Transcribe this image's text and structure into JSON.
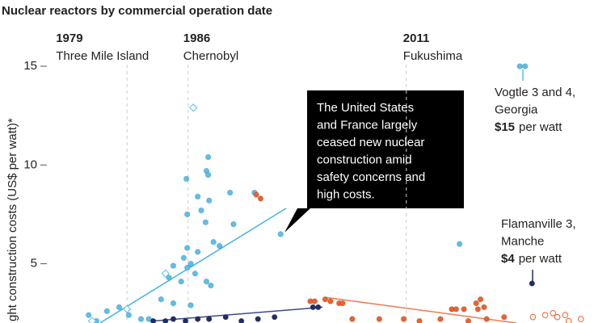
{
  "chart_data": {
    "type": "scatter",
    "title": "Nuclear reactors by commercial operation date",
    "y_label": "ght construction costs (US$ per watt)*",
    "xlim": [
      1970,
      2032.5
    ],
    "ylim": [
      2,
      15.9
    ],
    "yticks": [
      5,
      10,
      15
    ],
    "events": [
      {
        "year": 1979,
        "label": "Three Mile Island"
      },
      {
        "year": 1986,
        "label": "Chernobyl"
      },
      {
        "year": 2011,
        "label": "Fukushima"
      }
    ],
    "series": [
      {
        "color": "#5bc0eb",
        "marker": "circle",
        "hollow": false,
        "x": [
          1988.3,
          1988.1,
          1988.3,
          1985.8,
          1987.1,
          1990.8,
          1993.6,
          1988.4,
          1987.5,
          1985.9,
          1988.0,
          1991.2,
          1996.6,
          2017.1,
          1988.9,
          1989.6,
          1985.9,
          1987.1,
          1985.5,
          1986.3,
          1984.3,
          1985.9,
          1986.8,
          1983.8,
          1985.2,
          1988.1,
          1988.6,
          1982.9,
          1984.3,
          1986.3,
          1978.1,
          1976.7,
          1974.6,
          1979.2,
          1980.6,
          1981.5,
          1975.5,
          2024.0,
          2024.6
        ],
        "values": [
          10.4,
          9.7,
          9.5,
          9.3,
          8.4,
          8.6,
          8.6,
          8.2,
          7.7,
          7.5,
          7.1,
          7.0,
          6.5,
          6.0,
          6.1,
          5.9,
          5.8,
          5.6,
          5.3,
          5.0,
          4.9,
          4.8,
          4.5,
          4.3,
          4.1,
          4.1,
          3.9,
          3.2,
          3.0,
          2.9,
          2.8,
          2.6,
          2.4,
          2.4,
          2.2,
          2.2,
          2.1,
          15.0,
          15.0
        ]
      },
      {
        "color": "#5bc0eb",
        "marker": "diamond",
        "hollow": true,
        "x": [
          1986.6,
          1983.4,
          1979.0,
          1975.0
        ],
        "values": [
          12.9,
          4.5,
          2.7,
          2.1
        ]
      },
      {
        "color": "#1f2d6b",
        "marker": "circle",
        "hollow": false,
        "x": [
          1982.0,
          1983.4,
          1984.3,
          1985.7,
          1987.1,
          1988.4,
          1990.3,
          1992.1,
          1994.0,
          1995.9,
          2000.3,
          2000.9,
          2025.4
        ],
        "values": [
          2.1,
          2.1,
          2.2,
          2.1,
          2.2,
          2.2,
          2.3,
          2.1,
          2.2,
          2.3,
          2.8,
          2.8,
          4.0
        ]
      },
      {
        "color": "#f0602b",
        "marker": "circle",
        "hollow": false,
        "x": [
          1993.8,
          1994.3,
          2000.0,
          2000.5,
          2001.7,
          2002.3,
          2003.3,
          2003.7,
          2004.8,
          2007.9,
          2010.7,
          2012.5,
          2014.9,
          2016.2,
          2016.7,
          2017.6,
          2018.1,
          2019.0,
          2019.5,
          2019.9,
          2019.2,
          2020.2,
          2022.2
        ],
        "values": [
          8.5,
          8.3,
          3.1,
          3.1,
          3.2,
          3.1,
          3.0,
          3.0,
          2.2,
          2.2,
          2.2,
          2.1,
          2.2,
          2.7,
          2.7,
          2.7,
          2.1,
          3.0,
          3.2,
          2.8,
          2.7,
          2.2,
          2.3
        ]
      },
      {
        "color": "#f0602b",
        "marker": "circle",
        "hollow": true,
        "x": [
          2025.5,
          2026.9,
          2027.8,
          2028.3,
          2029.2,
          2029.6,
          2031.0
        ],
        "values": [
          2.3,
          2.4,
          2.5,
          2.3,
          2.4,
          2.1,
          2.2
        ]
      }
    ],
    "trend_lines": [
      {
        "color": "#3fb3e6",
        "x": [
          1975.9,
          1997.2
        ],
        "values": [
          2.0,
          7.8
        ]
      },
      {
        "color": "#3b4a8c",
        "x": [
          1982.0,
          2001.4
        ],
        "values": [
          2.1,
          2.8
        ]
      },
      {
        "color": "#f07a50",
        "x": [
          2001.7,
          2023.6
        ],
        "values": [
          3.3,
          2.0
        ]
      }
    ],
    "callout": [
      "The United States",
      "and France largely",
      "ceased new nuclear",
      "construction amid",
      "safety concerns and",
      "high costs."
    ],
    "annotations": [
      {
        "lines": [
          "Vogtle 3 and 4,",
          "Georgia"
        ],
        "bold": "$15",
        "rest": "per watt"
      },
      {
        "lines": [
          "Flamanville 3,",
          "Manche"
        ],
        "bold": "$4",
        "rest": "per watt"
      }
    ]
  }
}
